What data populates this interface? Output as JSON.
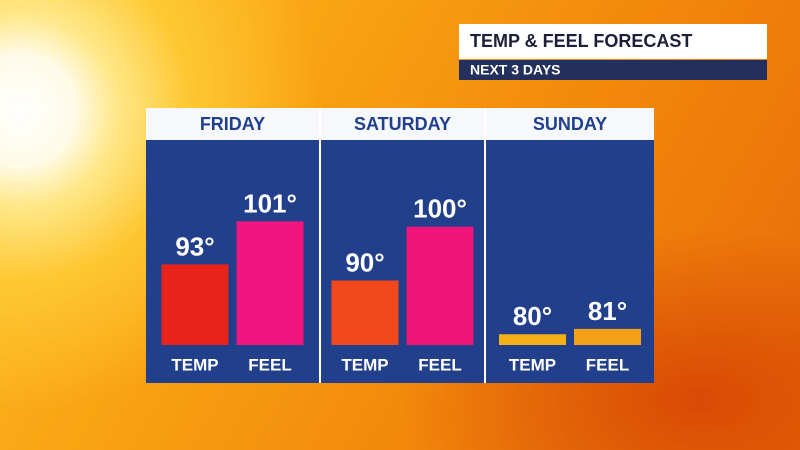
{
  "chart_data": {
    "type": "bar",
    "title": "TEMP & FEEL FORECAST",
    "subtitle": "NEXT 3 DAYS",
    "categories": [
      "FRIDAY",
      "SATURDAY",
      "SUNDAY"
    ],
    "series": [
      {
        "name": "TEMP",
        "colors": [
          "#e8231a",
          "#f2481c",
          "#f5b016"
        ],
        "values": [
          93,
          90,
          80
        ],
        "value_labels": [
          "93°",
          "90°",
          "80°"
        ]
      },
      {
        "name": "FEEL",
        "colors": [
          "#f0157f",
          "#f0147a",
          "#f5a019"
        ],
        "values": [
          101,
          100,
          81
        ],
        "value_labels": [
          "101°",
          "100°",
          "81°"
        ]
      }
    ],
    "ylim": [
      78,
      110
    ]
  }
}
